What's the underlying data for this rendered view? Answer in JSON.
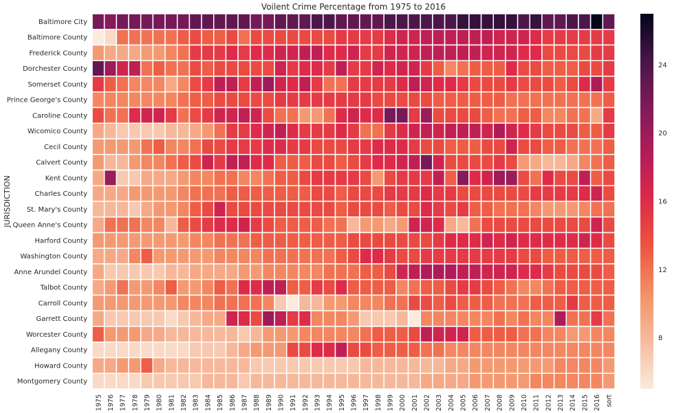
{
  "chart_data": {
    "type": "heatmap",
    "title": "Voilent Crime Percentage from 1975 to 2016",
    "ylabel": "JURISDICTION",
    "xlabel": "",
    "columns": [
      "1975",
      "1976",
      "1977",
      "1978",
      "1979",
      "1980",
      "1981",
      "1982",
      "1983",
      "1984",
      "1985",
      "1986",
      "1987",
      "1988",
      "1989",
      "1990",
      "1991",
      "1992",
      "1993",
      "1994",
      "1995",
      "1996",
      "1997",
      "1998",
      "1999",
      "2000",
      "2001",
      "2002",
      "2003",
      "2004",
      "2005",
      "2006",
      "2007",
      "2008",
      "2009",
      "2010",
      "2011",
      "2012",
      "2013",
      "2014",
      "2015",
      "2016",
      "sort"
    ],
    "rows": [
      "Baltimore City",
      "Baltimore County",
      "Frederick County",
      "Dorchester County",
      "Somerset County",
      "Prince George's County",
      "Caroline County",
      "Wicomico County",
      "Cecil County",
      "Calvert County",
      "Kent County",
      "Charles County",
      "St. Mary's County",
      "Queen Anne's County",
      "Harford County",
      "Washington County",
      "Anne Arundel County",
      "Talbot County",
      "Carroll County",
      "Garrett County",
      "Worcester County",
      "Allegany County",
      "Howard County",
      "Montgomery County"
    ],
    "values": [
      [
        22,
        21,
        22,
        22,
        22,
        22,
        22,
        22,
        23,
        23,
        23,
        23,
        23,
        22,
        22,
        23,
        23,
        23,
        24,
        24,
        23,
        23,
        23,
        23,
        24,
        24,
        24,
        24,
        24,
        24,
        25,
        25,
        25,
        25,
        25,
        24,
        25,
        23,
        23,
        24,
        24,
        27,
        23
      ],
      [
        5,
        6,
        12,
        12,
        12,
        12,
        12,
        13,
        14,
        13,
        13,
        14,
        12,
        14,
        14,
        14,
        14,
        14,
        14,
        14,
        15,
        15,
        15,
        15,
        16,
        17,
        17,
        18,
        18,
        18,
        18,
        18,
        18,
        17,
        17,
        17,
        16,
        15,
        15,
        15,
        15,
        15,
        15
      ],
      [
        10,
        9,
        9,
        9,
        10,
        10,
        11,
        12,
        15,
        15,
        15,
        16,
        15,
        16,
        16,
        17,
        17,
        18,
        18,
        16,
        16,
        17,
        15,
        15,
        17,
        17,
        17,
        18,
        18,
        18,
        18,
        18,
        17,
        17,
        17,
        16,
        16,
        14,
        14,
        14,
        14,
        15,
        15
      ],
      [
        23,
        20,
        17,
        18,
        12,
        13,
        12,
        12,
        14,
        13,
        14,
        14,
        14,
        14,
        14,
        17,
        15,
        16,
        16,
        15,
        18,
        15,
        15,
        17,
        16,
        17,
        17,
        15,
        13,
        11,
        12,
        13,
        13,
        13,
        16,
        14,
        14,
        13,
        13,
        13,
        14,
        14,
        15
      ],
      [
        15,
        13,
        12,
        11,
        11,
        11,
        9,
        11,
        14,
        15,
        18,
        18,
        15,
        18,
        20,
        17,
        16,
        18,
        15,
        12,
        12,
        15,
        15,
        15,
        15,
        16,
        18,
        17,
        16,
        16,
        15,
        14,
        14,
        14,
        15,
        14,
        14,
        14,
        13,
        14,
        16,
        19,
        15
      ],
      [
        11,
        11,
        11,
        11,
        11,
        11,
        11,
        12,
        13,
        13,
        14,
        14,
        14,
        14,
        14,
        15,
        15,
        15,
        15,
        15,
        15,
        15,
        15,
        14,
        14,
        14,
        14,
        14,
        13,
        13,
        13,
        13,
        13,
        13,
        12,
        12,
        12,
        12,
        12,
        12,
        12,
        12,
        13
      ],
      [
        14,
        12,
        12,
        16,
        17,
        17,
        15,
        12,
        14,
        15,
        17,
        17,
        18,
        17,
        14,
        12,
        12,
        10,
        10,
        12,
        16,
        17,
        16,
        16,
        22,
        22,
        15,
        20,
        14,
        14,
        14,
        14,
        13,
        12,
        12,
        13,
        13,
        11,
        11,
        12,
        12,
        9,
        15
      ],
      [
        9,
        8,
        7,
        7,
        7,
        7,
        8,
        8,
        9,
        10,
        12,
        15,
        15,
        16,
        17,
        18,
        16,
        15,
        15,
        15,
        16,
        15,
        12,
        12,
        15,
        16,
        17,
        18,
        17,
        18,
        18,
        18,
        17,
        19,
        17,
        16,
        15,
        14,
        14,
        14,
        13,
        13,
        15
      ],
      [
        10,
        10,
        10,
        10,
        12,
        13,
        11,
        11,
        12,
        14,
        14,
        15,
        15,
        15,
        16,
        16,
        15,
        15,
        14,
        14,
        14,
        15,
        15,
        16,
        16,
        16,
        15,
        14,
        14,
        13,
        13,
        13,
        14,
        14,
        17,
        14,
        14,
        13,
        13,
        12,
        12,
        12,
        13
      ],
      [
        10,
        8,
        8,
        10,
        11,
        11,
        12,
        13,
        14,
        17,
        15,
        18,
        18,
        16,
        16,
        13,
        13,
        13,
        14,
        14,
        13,
        14,
        15,
        16,
        16,
        17,
        18,
        22,
        17,
        14,
        14,
        14,
        14,
        15,
        14,
        10,
        9,
        8,
        8,
        9,
        11,
        12,
        13
      ],
      [
        9,
        20,
        7,
        7,
        9,
        9,
        9,
        10,
        11,
        11,
        12,
        12,
        11,
        11,
        12,
        13,
        13,
        14,
        15,
        15,
        15,
        15,
        14,
        10,
        14,
        15,
        15,
        15,
        18,
        13,
        21,
        16,
        17,
        20,
        20,
        14,
        12,
        16,
        14,
        14,
        18,
        13,
        14
      ],
      [
        9,
        9,
        9,
        10,
        10,
        10,
        10,
        11,
        12,
        12,
        12,
        13,
        13,
        13,
        13,
        13,
        13,
        13,
        14,
        14,
        13,
        14,
        14,
        14,
        15,
        15,
        15,
        16,
        15,
        15,
        14,
        14,
        14,
        14,
        14,
        14,
        15,
        15,
        15,
        15,
        16,
        17,
        14
      ],
      [
        8,
        8,
        8,
        7,
        9,
        10,
        10,
        11,
        13,
        14,
        17,
        14,
        14,
        14,
        14,
        14,
        14,
        14,
        14,
        14,
        13,
        14,
        14,
        14,
        13,
        14,
        14,
        16,
        15,
        14,
        15,
        13,
        13,
        12,
        12,
        12,
        11,
        10,
        10,
        10,
        11,
        12,
        12
      ],
      [
        9,
        12,
        12,
        12,
        11,
        11,
        8,
        13,
        14,
        15,
        16,
        16,
        17,
        15,
        14,
        13,
        13,
        13,
        13,
        12,
        12,
        8,
        10,
        10,
        9,
        10,
        17,
        17,
        16,
        9,
        8,
        12,
        14,
        14,
        14,
        14,
        14,
        14,
        14,
        14,
        14,
        17,
        14
      ],
      [
        10,
        10,
        10,
        10,
        10,
        10,
        10,
        10,
        11,
        11,
        12,
        12,
        12,
        13,
        13,
        13,
        13,
        13,
        13,
        13,
        13,
        14,
        14,
        14,
        14,
        14,
        14,
        14,
        15,
        16,
        16,
        16,
        17,
        16,
        17,
        16,
        16,
        16,
        16,
        16,
        17,
        16,
        14
      ],
      [
        9,
        9,
        9,
        11,
        13,
        10,
        10,
        10,
        10,
        10,
        11,
        11,
        11,
        11,
        12,
        12,
        12,
        12,
        12,
        12,
        13,
        14,
        16,
        16,
        15,
        14,
        14,
        15,
        15,
        15,
        15,
        15,
        15,
        15,
        15,
        14,
        14,
        13,
        13,
        13,
        13,
        13,
        13
      ],
      [
        9,
        7,
        7,
        7,
        7,
        7,
        8,
        8,
        9,
        9,
        9,
        9,
        10,
        10,
        11,
        11,
        11,
        11,
        11,
        12,
        12,
        12,
        13,
        13,
        14,
        17,
        18,
        19,
        19,
        19,
        18,
        18,
        17,
        17,
        17,
        16,
        16,
        15,
        14,
        14,
        14,
        14,
        13
      ],
      [
        9,
        10,
        12,
        10,
        10,
        11,
        13,
        10,
        10,
        11,
        13,
        12,
        16,
        16,
        18,
        18,
        13,
        13,
        15,
        14,
        16,
        13,
        13,
        13,
        13,
        11,
        12,
        13,
        13,
        14,
        15,
        15,
        14,
        13,
        12,
        11,
        11,
        12,
        13,
        13,
        13,
        13,
        13
      ],
      [
        10,
        10,
        10,
        10,
        10,
        10,
        10,
        11,
        11,
        11,
        12,
        12,
        12,
        12,
        11,
        7,
        5,
        8,
        8,
        10,
        10,
        11,
        11,
        11,
        12,
        12,
        14,
        14,
        13,
        14,
        13,
        13,
        13,
        12,
        12,
        12,
        13,
        13,
        13,
        15,
        13,
        13,
        13
      ],
      [
        9,
        7,
        7,
        7,
        7,
        7,
        6,
        7,
        8,
        9,
        9,
        17,
        16,
        14,
        20,
        18,
        15,
        16,
        11,
        11,
        11,
        10,
        7,
        7,
        7,
        8,
        5,
        11,
        11,
        11,
        11,
        11,
        11,
        12,
        11,
        12,
        11,
        11,
        19,
        12,
        12,
        15,
        12
      ],
      [
        13,
        10,
        10,
        10,
        9,
        9,
        8,
        8,
        8,
        8,
        8,
        8,
        7,
        8,
        10,
        10,
        10,
        11,
        11,
        11,
        11,
        11,
        12,
        13,
        13,
        13,
        14,
        18,
        17,
        17,
        17,
        13,
        13,
        13,
        13,
        12,
        12,
        11,
        11,
        10,
        10,
        11,
        11
      ],
      [
        6,
        6,
        6,
        6,
        6,
        6,
        6,
        6,
        7,
        7,
        7,
        8,
        9,
        10,
        10,
        10,
        14,
        14,
        16,
        16,
        18,
        14,
        14,
        13,
        13,
        13,
        13,
        12,
        12,
        11,
        11,
        11,
        11,
        11,
        11,
        11,
        11,
        11,
        11,
        11,
        11,
        11,
        11
      ],
      [
        9,
        9,
        10,
        10,
        13,
        9,
        8,
        8,
        8,
        8,
        8,
        8,
        8,
        7,
        7,
        7,
        7,
        7,
        7,
        7,
        7,
        7,
        8,
        8,
        8,
        8,
        8,
        8,
        8,
        9,
        9,
        10,
        10,
        10,
        10,
        10,
        10,
        10,
        11,
        11,
        11,
        11,
        10
      ],
      [
        6,
        6,
        6,
        6,
        7,
        7,
        7,
        7,
        7,
        8,
        8,
        8,
        7,
        8,
        8,
        8,
        8,
        8,
        8,
        8,
        8,
        8,
        8,
        8,
        8,
        8,
        8,
        9,
        9,
        9,
        9,
        10,
        10,
        10,
        10,
        10,
        11,
        11,
        11,
        11,
        11,
        11,
        10
      ]
    ],
    "colorbar": {
      "min": 5,
      "max": 27,
      "ticks": [
        8,
        12,
        16,
        20,
        24
      ],
      "colormap": "rocket_r"
    },
    "grid": false,
    "legend": "colorbar-right"
  }
}
